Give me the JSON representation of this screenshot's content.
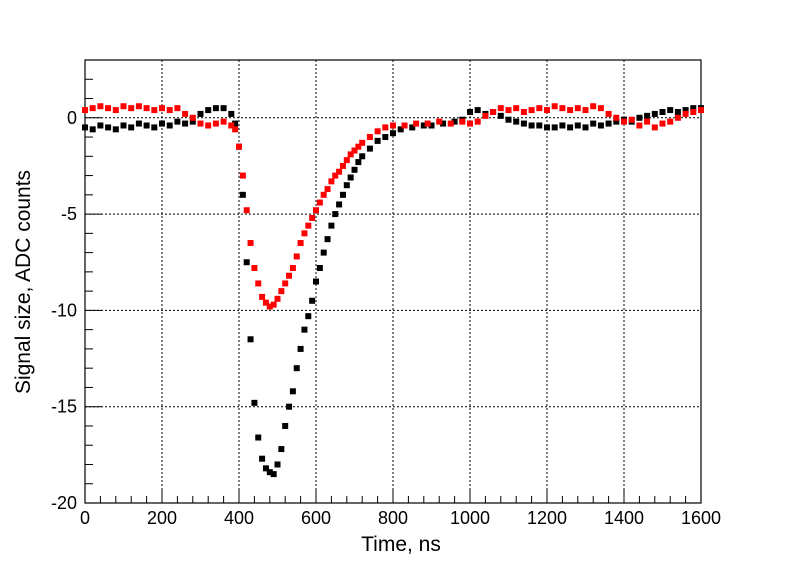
{
  "chart_data": {
    "type": "scatter",
    "title": "",
    "xlabel": "Time, ns",
    "ylabel": "Signal size, ADC counts",
    "xlim": [
      0,
      1600
    ],
    "ylim": [
      -20,
      3
    ],
    "x_ticks": [
      0,
      200,
      400,
      600,
      800,
      1000,
      1200,
      1400,
      1600
    ],
    "y_ticks": [
      0,
      -5,
      -10,
      -15,
      -20
    ],
    "grid": true,
    "legend": "none",
    "colors": {
      "black_series": "#000000",
      "red_series": "#ff0000",
      "grid": "#000000"
    },
    "series": [
      {
        "color": "#000000",
        "points": [
          [
            0,
            -0.5
          ],
          [
            20,
            -0.6
          ],
          [
            40,
            -0.4
          ],
          [
            60,
            -0.5
          ],
          [
            80,
            -0.6
          ],
          [
            100,
            -0.4
          ],
          [
            120,
            -0.5
          ],
          [
            140,
            -0.3
          ],
          [
            160,
            -0.4
          ],
          [
            180,
            -0.5
          ],
          [
            200,
            -0.3
          ],
          [
            220,
            -0.4
          ],
          [
            240,
            -0.2
          ],
          [
            260,
            -0.3
          ],
          [
            280,
            -0.2
          ],
          [
            300,
            0.2
          ],
          [
            320,
            0.4
          ],
          [
            340,
            0.5
          ],
          [
            360,
            0.5
          ],
          [
            380,
            0.2
          ],
          [
            390,
            -0.3
          ],
          [
            400,
            -1.5
          ],
          [
            410,
            -4.0
          ],
          [
            420,
            -7.5
          ],
          [
            430,
            -11.5
          ],
          [
            440,
            -14.8
          ],
          [
            450,
            -16.6
          ],
          [
            460,
            -17.7
          ],
          [
            470,
            -18.2
          ],
          [
            480,
            -18.4
          ],
          [
            490,
            -18.5
          ],
          [
            500,
            -18.0
          ],
          [
            510,
            -17.2
          ],
          [
            520,
            -16.0
          ],
          [
            530,
            -15.0
          ],
          [
            540,
            -14.2
          ],
          [
            550,
            -13.0
          ],
          [
            560,
            -12.0
          ],
          [
            570,
            -11.0
          ],
          [
            580,
            -10.3
          ],
          [
            590,
            -9.5
          ],
          [
            600,
            -8.5
          ],
          [
            610,
            -7.8
          ],
          [
            620,
            -7.0
          ],
          [
            630,
            -6.3
          ],
          [
            640,
            -5.6
          ],
          [
            650,
            -5.0
          ],
          [
            660,
            -4.5
          ],
          [
            670,
            -4.0
          ],
          [
            680,
            -3.5
          ],
          [
            690,
            -3.1
          ],
          [
            700,
            -2.7
          ],
          [
            710,
            -2.3
          ],
          [
            720,
            -2.0
          ],
          [
            740,
            -1.6
          ],
          [
            760,
            -1.2
          ],
          [
            780,
            -1.0
          ],
          [
            800,
            -0.8
          ],
          [
            820,
            -0.6
          ],
          [
            850,
            -0.5
          ],
          [
            880,
            -0.4
          ],
          [
            900,
            -0.4
          ],
          [
            930,
            -0.3
          ],
          [
            960,
            -0.2
          ],
          [
            980,
            -0.1
          ],
          [
            1000,
            0.3
          ],
          [
            1020,
            0.4
          ],
          [
            1040,
            0.2
          ],
          [
            1060,
            0.3
          ],
          [
            1080,
            0.1
          ],
          [
            1100,
            -0.1
          ],
          [
            1120,
            -0.2
          ],
          [
            1140,
            -0.3
          ],
          [
            1160,
            -0.4
          ],
          [
            1180,
            -0.4
          ],
          [
            1200,
            -0.5
          ],
          [
            1220,
            -0.5
          ],
          [
            1240,
            -0.4
          ],
          [
            1260,
            -0.5
          ],
          [
            1280,
            -0.4
          ],
          [
            1300,
            -0.5
          ],
          [
            1320,
            -0.3
          ],
          [
            1340,
            -0.4
          ],
          [
            1360,
            -0.3
          ],
          [
            1380,
            -0.2
          ],
          [
            1400,
            -0.1
          ],
          [
            1420,
            -0.2
          ],
          [
            1440,
            0.0
          ],
          [
            1460,
            0.1
          ],
          [
            1480,
            0.2
          ],
          [
            1500,
            0.3
          ],
          [
            1520,
            0.4
          ],
          [
            1540,
            0.3
          ],
          [
            1560,
            0.4
          ],
          [
            1580,
            0.5
          ],
          [
            1600,
            0.5
          ]
        ]
      },
      {
        "color": "#ff0000",
        "points": [
          [
            0,
            0.4
          ],
          [
            20,
            0.5
          ],
          [
            40,
            0.6
          ],
          [
            60,
            0.5
          ],
          [
            80,
            0.4
          ],
          [
            100,
            0.6
          ],
          [
            120,
            0.5
          ],
          [
            140,
            0.6
          ],
          [
            160,
            0.5
          ],
          [
            180,
            0.4
          ],
          [
            200,
            0.5
          ],
          [
            220,
            0.4
          ],
          [
            240,
            0.5
          ],
          [
            260,
            0.2
          ],
          [
            280,
            0.0
          ],
          [
            300,
            -0.3
          ],
          [
            320,
            -0.4
          ],
          [
            340,
            -0.3
          ],
          [
            360,
            -0.2
          ],
          [
            380,
            -0.4
          ],
          [
            390,
            -0.6
          ],
          [
            400,
            -1.5
          ],
          [
            410,
            -3.0
          ],
          [
            420,
            -4.8
          ],
          [
            430,
            -6.5
          ],
          [
            440,
            -7.8
          ],
          [
            450,
            -8.6
          ],
          [
            460,
            -9.3
          ],
          [
            470,
            -9.6
          ],
          [
            480,
            -9.8
          ],
          [
            490,
            -9.7
          ],
          [
            500,
            -9.4
          ],
          [
            510,
            -9.0
          ],
          [
            520,
            -8.6
          ],
          [
            530,
            -8.2
          ],
          [
            540,
            -7.8
          ],
          [
            550,
            -7.2
          ],
          [
            560,
            -6.5
          ],
          [
            570,
            -6.0
          ],
          [
            580,
            -5.6
          ],
          [
            590,
            -5.2
          ],
          [
            600,
            -4.8
          ],
          [
            610,
            -4.4
          ],
          [
            620,
            -4.0
          ],
          [
            630,
            -3.7
          ],
          [
            640,
            -3.3
          ],
          [
            650,
            -3.0
          ],
          [
            660,
            -2.8
          ],
          [
            670,
            -2.5
          ],
          [
            680,
            -2.2
          ],
          [
            690,
            -1.9
          ],
          [
            700,
            -1.7
          ],
          [
            710,
            -1.5
          ],
          [
            720,
            -1.3
          ],
          [
            740,
            -1.0
          ],
          [
            760,
            -0.7
          ],
          [
            780,
            -0.5
          ],
          [
            800,
            -0.4
          ],
          [
            830,
            -0.4
          ],
          [
            860,
            -0.3
          ],
          [
            890,
            -0.3
          ],
          [
            920,
            -0.2
          ],
          [
            950,
            -0.3
          ],
          [
            980,
            -0.2
          ],
          [
            1000,
            -0.3
          ],
          [
            1020,
            -0.2
          ],
          [
            1040,
            0.1
          ],
          [
            1060,
            0.3
          ],
          [
            1080,
            0.5
          ],
          [
            1100,
            0.4
          ],
          [
            1120,
            0.5
          ],
          [
            1140,
            0.3
          ],
          [
            1160,
            0.4
          ],
          [
            1180,
            0.5
          ],
          [
            1200,
            0.4
          ],
          [
            1220,
            0.6
          ],
          [
            1240,
            0.5
          ],
          [
            1260,
            0.4
          ],
          [
            1280,
            0.5
          ],
          [
            1300,
            0.4
          ],
          [
            1320,
            0.6
          ],
          [
            1340,
            0.5
          ],
          [
            1360,
            0.2
          ],
          [
            1380,
            0.0
          ],
          [
            1400,
            -0.2
          ],
          [
            1420,
            -0.1
          ],
          [
            1440,
            -0.4
          ],
          [
            1460,
            -0.2
          ],
          [
            1480,
            -0.5
          ],
          [
            1500,
            -0.3
          ],
          [
            1520,
            -0.2
          ],
          [
            1540,
            0.0
          ],
          [
            1560,
            0.2
          ],
          [
            1580,
            0.3
          ],
          [
            1600,
            0.4
          ]
        ]
      }
    ]
  }
}
